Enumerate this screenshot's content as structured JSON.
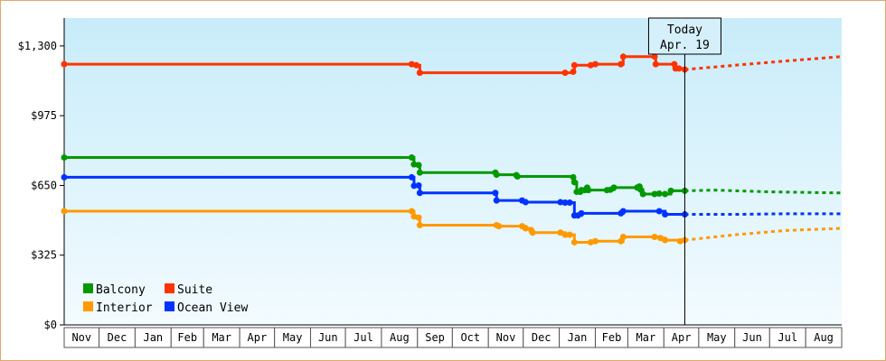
{
  "chart_data": {
    "type": "line",
    "y_format": "currency",
    "ylim": [
      0,
      1430
    ],
    "yticks": [
      {
        "value": 0,
        "label": "$0"
      },
      {
        "value": 325,
        "label": "$325"
      },
      {
        "value": 650,
        "label": "$650"
      },
      {
        "value": 975,
        "label": "$975"
      },
      {
        "value": 1300,
        "label": "$1,300"
      }
    ],
    "x_axis": {
      "start": "2017-11-01",
      "end": "2019-08-31",
      "months": [
        "Nov",
        "Dec",
        "Jan",
        "Feb",
        "Mar",
        "Apr",
        "May",
        "Jun",
        "Jul",
        "Aug",
        "Sep",
        "Oct",
        "Nov",
        "Dec",
        "Jan",
        "Feb",
        "Mar",
        "Apr",
        "May",
        "Jun",
        "Jul",
        "Aug"
      ]
    },
    "today": {
      "label": "Today",
      "date_label": "Apr. 19",
      "date": "2019-04-19"
    },
    "grid": false,
    "legend_position": "bottom-left",
    "series": [
      {
        "name": "Balcony",
        "color": "#009900",
        "points": [
          [
            "2017-11-01",
            780
          ],
          [
            "2018-08-27",
            780
          ],
          [
            "2018-08-29",
            748
          ],
          [
            "2018-09-02",
            745
          ],
          [
            "2018-09-03",
            710
          ],
          [
            "2018-11-07",
            710
          ],
          [
            "2018-11-08",
            700
          ],
          [
            "2018-11-25",
            698
          ],
          [
            "2018-11-26",
            692
          ],
          [
            "2019-01-13",
            688
          ],
          [
            "2019-01-14",
            665
          ],
          [
            "2019-01-16",
            620
          ],
          [
            "2019-01-19",
            620
          ],
          [
            "2019-01-20",
            628
          ],
          [
            "2019-01-23",
            628
          ],
          [
            "2019-01-25",
            640
          ],
          [
            "2019-01-26",
            628
          ],
          [
            "2019-02-11",
            628
          ],
          [
            "2019-02-14",
            630
          ],
          [
            "2019-02-17",
            640
          ],
          [
            "2019-03-09",
            640
          ],
          [
            "2019-03-11",
            645
          ],
          [
            "2019-03-12",
            630
          ],
          [
            "2019-03-14",
            610
          ],
          [
            "2019-03-24",
            610
          ],
          [
            "2019-03-28",
            612
          ],
          [
            "2019-04-02",
            610
          ],
          [
            "2019-04-07",
            625
          ],
          [
            "2019-04-19",
            625
          ]
        ],
        "forecast": [
          [
            "2019-04-19",
            625
          ],
          [
            "2019-05-15",
            628
          ],
          [
            "2019-07-01",
            620
          ],
          [
            "2019-08-31",
            615
          ]
        ]
      },
      {
        "name": "Suite",
        "color": "#ff3300",
        "points": [
          [
            "2017-11-01",
            1215
          ],
          [
            "2018-08-27",
            1215
          ],
          [
            "2018-08-31",
            1210
          ],
          [
            "2018-09-03",
            1175
          ],
          [
            "2018-12-04",
            1175
          ],
          [
            "2018-12-09",
            1175
          ],
          [
            "2019-01-02",
            1175
          ],
          [
            "2019-01-06",
            1175
          ],
          [
            "2019-01-13",
            1180
          ],
          [
            "2019-01-14",
            1210
          ],
          [
            "2019-01-26",
            1210
          ],
          [
            "2019-01-28",
            1210
          ],
          [
            "2019-02-01",
            1215
          ],
          [
            "2019-02-23",
            1215
          ],
          [
            "2019-02-25",
            1250
          ],
          [
            "2019-03-24",
            1250
          ],
          [
            "2019-03-25",
            1215
          ],
          [
            "2019-04-10",
            1215
          ],
          [
            "2019-04-11",
            1195
          ],
          [
            "2019-04-14",
            1195
          ],
          [
            "2019-04-19",
            1190
          ]
        ],
        "forecast": [
          [
            "2019-04-19",
            1190
          ],
          [
            "2019-06-01",
            1210
          ],
          [
            "2019-07-15",
            1230
          ],
          [
            "2019-08-31",
            1250
          ]
        ]
      },
      {
        "name": "Interior",
        "color": "#ff9900",
        "points": [
          [
            "2017-11-01",
            530
          ],
          [
            "2018-08-27",
            530
          ],
          [
            "2018-08-29",
            505
          ],
          [
            "2018-09-02",
            500
          ],
          [
            "2018-09-03",
            465
          ],
          [
            "2018-11-08",
            465
          ],
          [
            "2018-11-10",
            460
          ],
          [
            "2018-11-30",
            460
          ],
          [
            "2018-12-03",
            450
          ],
          [
            "2018-12-08",
            440
          ],
          [
            "2018-12-09",
            430
          ],
          [
            "2018-12-14",
            430
          ],
          [
            "2018-12-28",
            430
          ],
          [
            "2019-01-02",
            430
          ],
          [
            "2019-01-06",
            420
          ],
          [
            "2019-01-10",
            420
          ],
          [
            "2019-01-14",
            385
          ],
          [
            "2019-01-28",
            385
          ],
          [
            "2019-02-01",
            390
          ],
          [
            "2019-02-23",
            390
          ],
          [
            "2019-02-25",
            410
          ],
          [
            "2019-03-24",
            410
          ],
          [
            "2019-03-29",
            405
          ],
          [
            "2019-04-02",
            395
          ],
          [
            "2019-04-15",
            390
          ],
          [
            "2019-04-19",
            395
          ]
        ],
        "forecast": [
          [
            "2019-04-19",
            395
          ],
          [
            "2019-06-01",
            420
          ],
          [
            "2019-07-15",
            440
          ],
          [
            "2019-08-31",
            450
          ]
        ]
      },
      {
        "name": "Ocean View",
        "color": "#0033ff",
        "points": [
          [
            "2017-11-01",
            688
          ],
          [
            "2018-08-27",
            688
          ],
          [
            "2018-08-29",
            648
          ],
          [
            "2018-09-02",
            650
          ],
          [
            "2018-09-03",
            615
          ],
          [
            "2018-11-07",
            615
          ],
          [
            "2018-11-08",
            580
          ],
          [
            "2018-11-30",
            580
          ],
          [
            "2018-12-03",
            572
          ],
          [
            "2019-01-02",
            572
          ],
          [
            "2019-01-06",
            570
          ],
          [
            "2019-01-10",
            570
          ],
          [
            "2019-01-14",
            510
          ],
          [
            "2019-01-17",
            510
          ],
          [
            "2019-01-20",
            520
          ],
          [
            "2019-02-23",
            520
          ],
          [
            "2019-02-25",
            530
          ],
          [
            "2019-03-24",
            530
          ],
          [
            "2019-03-28",
            530
          ],
          [
            "2019-04-02",
            515
          ],
          [
            "2019-04-15",
            515
          ],
          [
            "2019-04-19",
            515
          ]
        ],
        "forecast": [
          [
            "2019-04-19",
            515
          ],
          [
            "2019-06-01",
            515
          ],
          [
            "2019-07-15",
            518
          ],
          [
            "2019-08-31",
            518
          ]
        ]
      }
    ],
    "legend": [
      {
        "name": "Balcony",
        "color": "#009900"
      },
      {
        "name": "Suite",
        "color": "#ff3300"
      },
      {
        "name": "Interior",
        "color": "#ff9900"
      },
      {
        "name": "Ocean View",
        "color": "#0033ff"
      }
    ]
  }
}
